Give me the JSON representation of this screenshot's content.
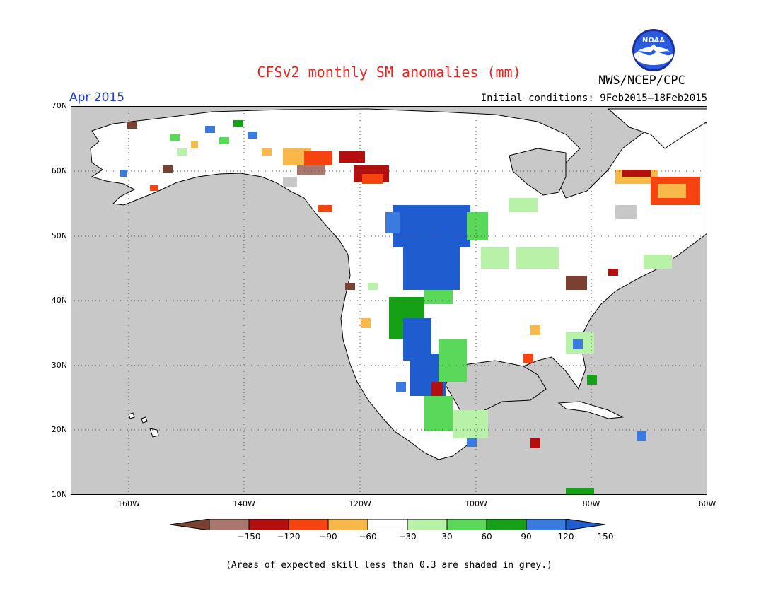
{
  "title": "CFSv2 monthly SM anomalies (mm)",
  "period": "Apr 2015",
  "initial_conditions": "Initial conditions: 9Feb2015–18Feb2015",
  "org": "NWS/NCEP/CPC",
  "logo_text": "NOAA",
  "map": {
    "lat_labels": [
      "70N",
      "60N",
      "50N",
      "40N",
      "30N",
      "20N",
      "10N"
    ],
    "lon_labels": [
      "160W",
      "140W",
      "120W",
      "100W",
      "80W",
      "60W"
    ],
    "ocean_color": "#c8c8c8",
    "land_color": "#ffffff"
  },
  "legend": {
    "labels": [
      "−150",
      "−120",
      "−90",
      "−60",
      "−30",
      "30",
      "60",
      "90",
      "120",
      "150"
    ],
    "colors": [
      "#7a4032",
      "#a8776e",
      "#b40f0f",
      "#f5440f",
      "#f8b84a",
      "#ffffff",
      "#b8f2a8",
      "#5ad85a",
      "#15a015",
      "#3a7be0",
      "#1e5cd0"
    ]
  },
  "note": "(Areas of expected skill less than 0.3 are shaded in grey.)"
}
